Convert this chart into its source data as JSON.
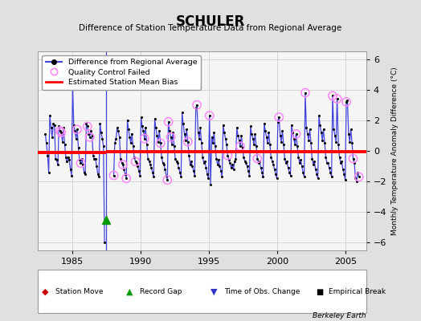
{
  "title": "SCHULER",
  "subtitle": "Difference of Station Temperature Data from Regional Average",
  "ylabel": "Monthly Temperature Anomaly Difference (°C)",
  "credit": "Berkeley Earth",
  "xlim": [
    1982.5,
    2006.5
  ],
  "ylim": [
    -6.5,
    6.5
  ],
  "yticks": [
    -6,
    -4,
    -2,
    0,
    2,
    4,
    6
  ],
  "xticks": [
    1985,
    1990,
    1995,
    2000,
    2005
  ],
  "line_color": "#4444dd",
  "bias_color": "#ff0000",
  "qc_color": "#ff88ff",
  "dot_color": "#000000",
  "grid_color": "#cccccc",
  "bg_color": "#e0e0e0",
  "plot_bg_color": "#f5f5f5",
  "segment1_bias": -0.12,
  "segment2_bias": -0.05,
  "gap_x": 1987.5,
  "gap_marker_x": 1987.5,
  "gap_marker_y": -4.5,
  "data": [
    [
      1983.04,
      1.1
    ],
    [
      1983.12,
      0.5
    ],
    [
      1983.21,
      -0.3
    ],
    [
      1983.29,
      -1.4
    ],
    [
      1983.37,
      2.3
    ],
    [
      1983.46,
      1.5
    ],
    [
      1983.54,
      0.9
    ],
    [
      1983.63,
      1.8
    ],
    [
      1983.71,
      1.7
    ],
    [
      1983.79,
      -0.5
    ],
    [
      1983.88,
      -0.6
    ],
    [
      1983.96,
      -0.9
    ],
    [
      1984.04,
      1.6
    ],
    [
      1984.12,
      1.3
    ],
    [
      1984.21,
      1.2
    ],
    [
      1984.29,
      0.6
    ],
    [
      1984.37,
      1.5
    ],
    [
      1984.46,
      0.4
    ],
    [
      1984.54,
      -0.4
    ],
    [
      1984.63,
      -0.7
    ],
    [
      1984.71,
      -0.4
    ],
    [
      1984.79,
      -0.6
    ],
    [
      1984.88,
      -1.2
    ],
    [
      1984.96,
      -1.6
    ],
    [
      1985.04,
      4.3
    ],
    [
      1985.12,
      1.7
    ],
    [
      1985.21,
      1.3
    ],
    [
      1985.29,
      0.8
    ],
    [
      1985.37,
      1.4
    ],
    [
      1985.46,
      0.2
    ],
    [
      1985.54,
      -0.6
    ],
    [
      1985.63,
      -0.8
    ],
    [
      1985.71,
      -0.5
    ],
    [
      1985.79,
      -0.9
    ],
    [
      1985.88,
      -1.4
    ],
    [
      1985.96,
      -1.5
    ],
    [
      1986.04,
      1.8
    ],
    [
      1986.12,
      1.6
    ],
    [
      1986.21,
      1.1
    ],
    [
      1986.29,
      0.9
    ],
    [
      1986.37,
      1.3
    ],
    [
      1986.46,
      1.0
    ],
    [
      1986.54,
      -0.3
    ],
    [
      1986.63,
      -0.5
    ],
    [
      1986.71,
      -0.5
    ],
    [
      1986.79,
      -1.0
    ],
    [
      1986.88,
      -1.5
    ],
    [
      1986.96,
      -1.7
    ],
    [
      1987.04,
      1.8
    ],
    [
      1987.12,
      1.2
    ],
    [
      1987.21,
      0.8
    ],
    [
      1987.29,
      0.3
    ],
    [
      1987.37,
      -6.0
    ],
    [
      1988.04,
      -1.6
    ],
    [
      1988.12,
      0.5
    ],
    [
      1988.21,
      0.8
    ],
    [
      1988.29,
      1.5
    ],
    [
      1988.37,
      1.3
    ],
    [
      1988.46,
      0.9
    ],
    [
      1988.54,
      -0.5
    ],
    [
      1988.63,
      -0.8
    ],
    [
      1988.71,
      -0.9
    ],
    [
      1988.79,
      -1.2
    ],
    [
      1988.88,
      -1.5
    ],
    [
      1988.96,
      -1.8
    ],
    [
      1989.04,
      2.0
    ],
    [
      1989.12,
      1.4
    ],
    [
      1989.21,
      0.9
    ],
    [
      1989.29,
      0.5
    ],
    [
      1989.37,
      1.1
    ],
    [
      1989.46,
      0.3
    ],
    [
      1989.54,
      -0.4
    ],
    [
      1989.63,
      -0.7
    ],
    [
      1989.71,
      -0.8
    ],
    [
      1989.79,
      -1.0
    ],
    [
      1989.88,
      -1.3
    ],
    [
      1989.96,
      -1.6
    ],
    [
      1990.04,
      2.2
    ],
    [
      1990.12,
      1.6
    ],
    [
      1990.21,
      1.3
    ],
    [
      1990.29,
      0.8
    ],
    [
      1990.37,
      1.5
    ],
    [
      1990.46,
      0.4
    ],
    [
      1990.54,
      -0.5
    ],
    [
      1990.63,
      -0.7
    ],
    [
      1990.71,
      -0.9
    ],
    [
      1990.79,
      -1.1
    ],
    [
      1990.88,
      -1.4
    ],
    [
      1990.96,
      -1.7
    ],
    [
      1991.04,
      2.1
    ],
    [
      1991.12,
      1.5
    ],
    [
      1991.21,
      1.0
    ],
    [
      1991.29,
      0.6
    ],
    [
      1991.37,
      1.3
    ],
    [
      1991.46,
      0.5
    ],
    [
      1991.54,
      -0.4
    ],
    [
      1991.63,
      -0.8
    ],
    [
      1991.71,
      -0.9
    ],
    [
      1991.79,
      -1.2
    ],
    [
      1991.88,
      -1.6
    ],
    [
      1991.96,
      -1.9
    ],
    [
      1992.04,
      1.9
    ],
    [
      1992.12,
      1.3
    ],
    [
      1992.21,
      0.9
    ],
    [
      1992.29,
      0.4
    ],
    [
      1992.37,
      1.2
    ],
    [
      1992.46,
      0.3
    ],
    [
      1992.54,
      -0.5
    ],
    [
      1992.63,
      -0.7
    ],
    [
      1992.71,
      -0.8
    ],
    [
      1992.79,
      -1.1
    ],
    [
      1992.88,
      -1.4
    ],
    [
      1992.96,
      -1.7
    ],
    [
      1993.04,
      2.5
    ],
    [
      1993.12,
      1.8
    ],
    [
      1993.21,
      1.1
    ],
    [
      1993.29,
      0.7
    ],
    [
      1993.37,
      1.4
    ],
    [
      1993.46,
      0.6
    ],
    [
      1993.54,
      -0.3
    ],
    [
      1993.63,
      -0.9
    ],
    [
      1993.71,
      -0.7
    ],
    [
      1993.79,
      -1.0
    ],
    [
      1993.88,
      -1.3
    ],
    [
      1993.96,
      -1.6
    ],
    [
      1994.04,
      2.8
    ],
    [
      1994.12,
      3.0
    ],
    [
      1994.21,
      1.2
    ],
    [
      1994.29,
      0.8
    ],
    [
      1994.37,
      1.5
    ],
    [
      1994.46,
      0.5
    ],
    [
      1994.54,
      -0.4
    ],
    [
      1994.63,
      -0.8
    ],
    [
      1994.71,
      -0.7
    ],
    [
      1994.79,
      -1.1
    ],
    [
      1994.88,
      -1.5
    ],
    [
      1994.96,
      -1.8
    ],
    [
      1995.04,
      2.3
    ],
    [
      1995.12,
      -2.2
    ],
    [
      1995.21,
      0.9
    ],
    [
      1995.29,
      0.5
    ],
    [
      1995.37,
      1.2
    ],
    [
      1995.46,
      0.3
    ],
    [
      1995.54,
      -0.5
    ],
    [
      1995.63,
      -0.9
    ],
    [
      1995.71,
      -0.6
    ],
    [
      1995.79,
      -1.0
    ],
    [
      1995.88,
      -1.3
    ],
    [
      1995.96,
      -1.7
    ],
    [
      1996.04,
      1.7
    ],
    [
      1996.12,
      1.2
    ],
    [
      1996.21,
      0.8
    ],
    [
      1996.29,
      0.4
    ],
    [
      1996.37,
      -0.3
    ],
    [
      1996.46,
      -0.6
    ],
    [
      1996.54,
      -0.8
    ],
    [
      1996.63,
      -1.1
    ],
    [
      1996.71,
      -0.9
    ],
    [
      1996.79,
      -1.2
    ],
    [
      1996.88,
      -0.7
    ],
    [
      1996.96,
      -0.5
    ],
    [
      1997.04,
      1.5
    ],
    [
      1997.12,
      1.0
    ],
    [
      1997.21,
      0.7
    ],
    [
      1997.29,
      0.3
    ],
    [
      1997.37,
      1.0
    ],
    [
      1997.46,
      0.2
    ],
    [
      1997.54,
      -0.4
    ],
    [
      1997.63,
      -0.7
    ],
    [
      1997.71,
      -0.8
    ],
    [
      1997.79,
      -1.0
    ],
    [
      1997.88,
      -1.3
    ],
    [
      1997.96,
      -1.6
    ],
    [
      1998.04,
      1.6
    ],
    [
      1998.12,
      1.1
    ],
    [
      1998.21,
      0.8
    ],
    [
      1998.29,
      0.4
    ],
    [
      1998.37,
      1.1
    ],
    [
      1998.46,
      0.3
    ],
    [
      1998.54,
      -0.5
    ],
    [
      1998.63,
      -0.8
    ],
    [
      1998.71,
      -0.7
    ],
    [
      1998.79,
      -1.1
    ],
    [
      1998.88,
      -1.4
    ],
    [
      1998.96,
      -1.7
    ],
    [
      1999.04,
      1.8
    ],
    [
      1999.12,
      1.3
    ],
    [
      1999.21,
      0.9
    ],
    [
      1999.29,
      0.5
    ],
    [
      1999.37,
      1.2
    ],
    [
      1999.46,
      0.4
    ],
    [
      1999.54,
      -0.4
    ],
    [
      1999.63,
      -0.7
    ],
    [
      1999.71,
      -0.9
    ],
    [
      1999.79,
      -1.2
    ],
    [
      1999.88,
      -1.5
    ],
    [
      1999.96,
      -1.8
    ],
    [
      2000.04,
      1.9
    ],
    [
      2000.12,
      2.2
    ],
    [
      2000.21,
      1.0
    ],
    [
      2000.29,
      0.6
    ],
    [
      2000.37,
      1.3
    ],
    [
      2000.46,
      0.4
    ],
    [
      2000.54,
      -0.5
    ],
    [
      2000.63,
      -0.8
    ],
    [
      2000.71,
      -0.7
    ],
    [
      2000.79,
      -1.1
    ],
    [
      2000.88,
      -1.4
    ],
    [
      2000.96,
      -1.6
    ],
    [
      2001.04,
      1.7
    ],
    [
      2001.12,
      1.2
    ],
    [
      2001.21,
      0.8
    ],
    [
      2001.29,
      0.4
    ],
    [
      2001.37,
      1.1
    ],
    [
      2001.46,
      0.3
    ],
    [
      2001.54,
      -0.4
    ],
    [
      2001.63,
      -0.8
    ],
    [
      2001.71,
      -0.6
    ],
    [
      2001.79,
      -1.0
    ],
    [
      2001.88,
      -1.4
    ],
    [
      2001.96,
      -1.7
    ],
    [
      2002.04,
      3.8
    ],
    [
      2002.12,
      1.5
    ],
    [
      2002.21,
      1.1
    ],
    [
      2002.29,
      0.7
    ],
    [
      2002.37,
      1.4
    ],
    [
      2002.46,
      0.5
    ],
    [
      2002.54,
      -0.5
    ],
    [
      2002.63,
      -0.9
    ],
    [
      2002.71,
      -0.7
    ],
    [
      2002.79,
      -1.2
    ],
    [
      2002.88,
      -1.5
    ],
    [
      2002.96,
      -1.8
    ],
    [
      2003.04,
      2.3
    ],
    [
      2003.12,
      1.7
    ],
    [
      2003.21,
      1.2
    ],
    [
      2003.29,
      0.7
    ],
    [
      2003.37,
      1.4
    ],
    [
      2003.46,
      0.5
    ],
    [
      2003.54,
      -0.4
    ],
    [
      2003.63,
      -0.8
    ],
    [
      2003.71,
      -0.8
    ],
    [
      2003.79,
      -1.1
    ],
    [
      2003.88,
      -1.4
    ],
    [
      2003.96,
      -1.7
    ],
    [
      2004.04,
      3.6
    ],
    [
      2004.12,
      1.4
    ],
    [
      2004.21,
      1.0
    ],
    [
      2004.29,
      0.6
    ],
    [
      2004.37,
      3.4
    ],
    [
      2004.46,
      0.4
    ],
    [
      2004.54,
      -0.4
    ],
    [
      2004.63,
      -0.8
    ],
    [
      2004.71,
      -0.7
    ],
    [
      2004.79,
      -1.2
    ],
    [
      2004.88,
      -1.5
    ],
    [
      2004.96,
      -1.9
    ],
    [
      2005.04,
      3.2
    ],
    [
      2005.12,
      3.3
    ],
    [
      2005.21,
      1.1
    ],
    [
      2005.29,
      0.6
    ],
    [
      2005.37,
      1.4
    ],
    [
      2005.46,
      0.5
    ],
    [
      2005.54,
      -0.5
    ],
    [
      2005.63,
      -0.8
    ],
    [
      2005.71,
      -1.8
    ],
    [
      2005.79,
      -2.0
    ],
    [
      2005.88,
      -1.4
    ],
    [
      2005.96,
      -1.7
    ]
  ],
  "qc_failed_points": [
    [
      1985.04,
      4.3
    ],
    [
      1984.12,
      1.3
    ],
    [
      1984.21,
      1.2
    ],
    [
      1985.37,
      1.4
    ],
    [
      1985.63,
      -0.8
    ],
    [
      1986.12,
      1.6
    ],
    [
      1986.29,
      0.9
    ],
    [
      1988.04,
      -1.6
    ],
    [
      1988.71,
      -0.9
    ],
    [
      1988.96,
      -1.8
    ],
    [
      1989.63,
      -0.7
    ],
    [
      1990.29,
      0.8
    ],
    [
      1991.46,
      0.5
    ],
    [
      1991.96,
      -1.9
    ],
    [
      1992.04,
      1.9
    ],
    [
      1992.21,
      0.9
    ],
    [
      1993.46,
      0.6
    ],
    [
      1994.12,
      3.0
    ],
    [
      1995.04,
      2.3
    ],
    [
      1996.37,
      -0.3
    ],
    [
      1997.29,
      0.3
    ],
    [
      1998.54,
      -0.5
    ],
    [
      2000.12,
      2.2
    ],
    [
      2001.37,
      1.1
    ],
    [
      2002.04,
      3.8
    ],
    [
      2004.04,
      3.6
    ],
    [
      2004.37,
      3.4
    ],
    [
      2005.04,
      3.2
    ],
    [
      2005.54,
      -0.5
    ],
    [
      2005.96,
      -1.7
    ]
  ]
}
